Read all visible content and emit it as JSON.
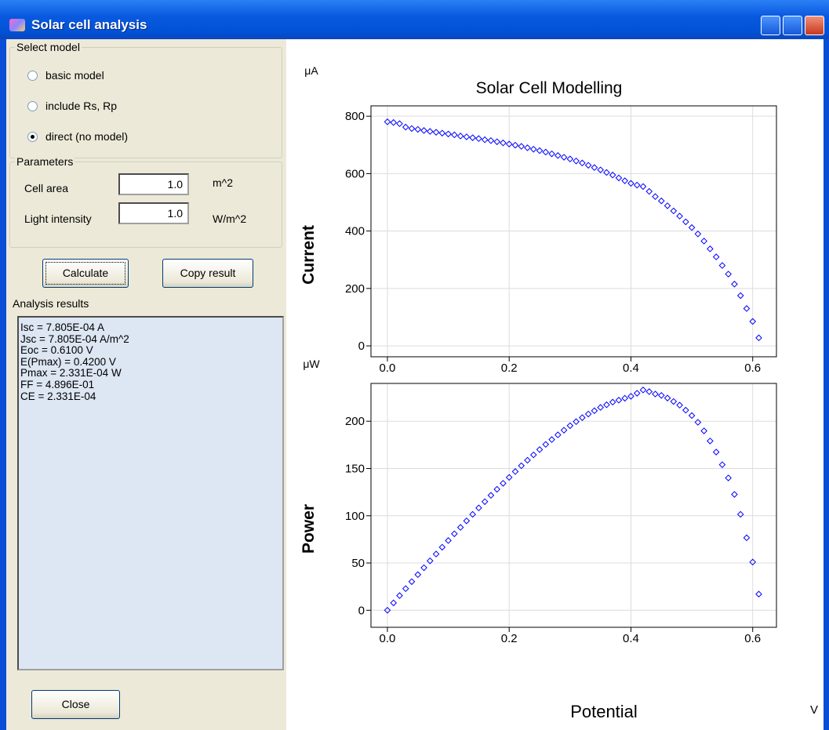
{
  "window": {
    "title": "Solar cell analysis"
  },
  "model_group": {
    "title": "Select model",
    "options": [
      "basic model",
      "include Rs, Rp",
      "direct (no model)"
    ],
    "selected": 2
  },
  "parameters": {
    "title": "Parameters",
    "cell_area": {
      "label": "Cell area",
      "value": "1.0",
      "unit": "m^2"
    },
    "light_intensity": {
      "label": "Light intensity",
      "value": "1.0",
      "unit": "W/m^2"
    }
  },
  "buttons": {
    "calculate": "Calculate",
    "copy": "Copy result",
    "close": "Close"
  },
  "results": {
    "title": "Analysis results",
    "lines": [
      "Isc = 7.805E-04 A",
      "Jsc = 7.805E-04 A/m^2",
      "Eoc = 0.6100 V",
      "E(Pmax) = 0.4200 V",
      "Pmax = 2.331E-04 W",
      "FF = 4.896E-01",
      "CE = 2.331E-04"
    ]
  },
  "chart_data": [
    {
      "type": "scatter",
      "title": "Solar Cell Modelling",
      "y_label": "Current",
      "y_unit": "μA",
      "color": "#0000ff",
      "grid": true,
      "x": [
        0,
        0.01,
        0.02,
        0.03,
        0.04,
        0.05,
        0.06,
        0.07,
        0.08,
        0.09,
        0.1,
        0.11,
        0.12,
        0.13,
        0.14,
        0.15,
        0.16,
        0.17,
        0.18,
        0.19,
        0.2,
        0.21,
        0.22,
        0.23,
        0.24,
        0.25,
        0.26,
        0.27,
        0.28,
        0.29,
        0.3,
        0.31,
        0.32,
        0.33,
        0.34,
        0.35,
        0.36,
        0.37,
        0.38,
        0.39,
        0.4,
        0.41,
        0.42,
        0.43,
        0.44,
        0.45,
        0.46,
        0.47,
        0.48,
        0.49,
        0.5,
        0.51,
        0.52,
        0.53,
        0.54,
        0.55,
        0.56,
        0.57,
        0.58,
        0.59,
        0.6,
        0.61
      ],
      "values": [
        780.5,
        778,
        774,
        762,
        757,
        754,
        750,
        747,
        744,
        741,
        738,
        735,
        731,
        728,
        725,
        722,
        718,
        715,
        711,
        707,
        703,
        699,
        695,
        690,
        685,
        680,
        675,
        669,
        663,
        657,
        651,
        644,
        637,
        629,
        621,
        613,
        604,
        595,
        585,
        575,
        566,
        560,
        555,
        538,
        520,
        505,
        488,
        470,
        452,
        432,
        412,
        390,
        365,
        338,
        310,
        280,
        250,
        215,
        175,
        130,
        85,
        28
      ],
      "xlim": [
        -0.027,
        0.639
      ],
      "ylim": [
        -38,
        836
      ],
      "xticks": [
        {
          "value": 0,
          "label": "0.0"
        },
        {
          "value": 0.2,
          "label": "0.2"
        },
        {
          "value": 0.4,
          "label": "0.4"
        },
        {
          "value": 0.6,
          "label": "0.6"
        }
      ],
      "yticks": [
        0,
        200,
        400,
        600,
        800
      ]
    },
    {
      "type": "scatter",
      "y_label": "Power",
      "y_unit": "μW",
      "x_label": "Potential",
      "x_unit": "V",
      "color": "#0000ff",
      "grid": true,
      "x": [
        0,
        0.01,
        0.02,
        0.03,
        0.04,
        0.05,
        0.06,
        0.07,
        0.08,
        0.09,
        0.1,
        0.11,
        0.12,
        0.13,
        0.14,
        0.15,
        0.16,
        0.17,
        0.18,
        0.19,
        0.2,
        0.21,
        0.22,
        0.23,
        0.24,
        0.25,
        0.26,
        0.27,
        0.28,
        0.29,
        0.3,
        0.31,
        0.32,
        0.33,
        0.34,
        0.35,
        0.36,
        0.37,
        0.38,
        0.39,
        0.4,
        0.41,
        0.42,
        0.43,
        0.44,
        0.45,
        0.46,
        0.47,
        0.48,
        0.49,
        0.5,
        0.51,
        0.52,
        0.53,
        0.54,
        0.55,
        0.56,
        0.57,
        0.58,
        0.59,
        0.6,
        0.61
      ],
      "values": [
        0,
        7.8,
        15.5,
        22.9,
        30.3,
        37.7,
        45,
        52.3,
        59.5,
        66.7,
        73.8,
        80.9,
        87.7,
        94.6,
        101.5,
        108.3,
        114.9,
        121.6,
        128,
        134.3,
        140.6,
        146.8,
        152.9,
        158.7,
        164.4,
        170,
        175.5,
        180.6,
        185.6,
        190.5,
        195.3,
        199.6,
        203.8,
        207.6,
        211.1,
        214.6,
        217.4,
        220.2,
        222.3,
        224.3,
        226.4,
        229.6,
        233.1,
        231.3,
        228.8,
        227.3,
        224.5,
        220.9,
        217,
        211.7,
        206,
        198.9,
        189.8,
        179.1,
        167.4,
        154,
        140,
        122.6,
        101.5,
        76.7,
        51,
        17.1
      ],
      "xlim": [
        -0.027,
        0.639
      ],
      "ylim": [
        -18,
        240
      ],
      "xticks": [
        {
          "value": 0,
          "label": "0.0"
        },
        {
          "value": 0.2,
          "label": "0.2"
        },
        {
          "value": 0.4,
          "label": "0.4"
        },
        {
          "value": 0.6,
          "label": "0.6"
        }
      ],
      "yticks": [
        0,
        50,
        100,
        150,
        200
      ]
    }
  ]
}
